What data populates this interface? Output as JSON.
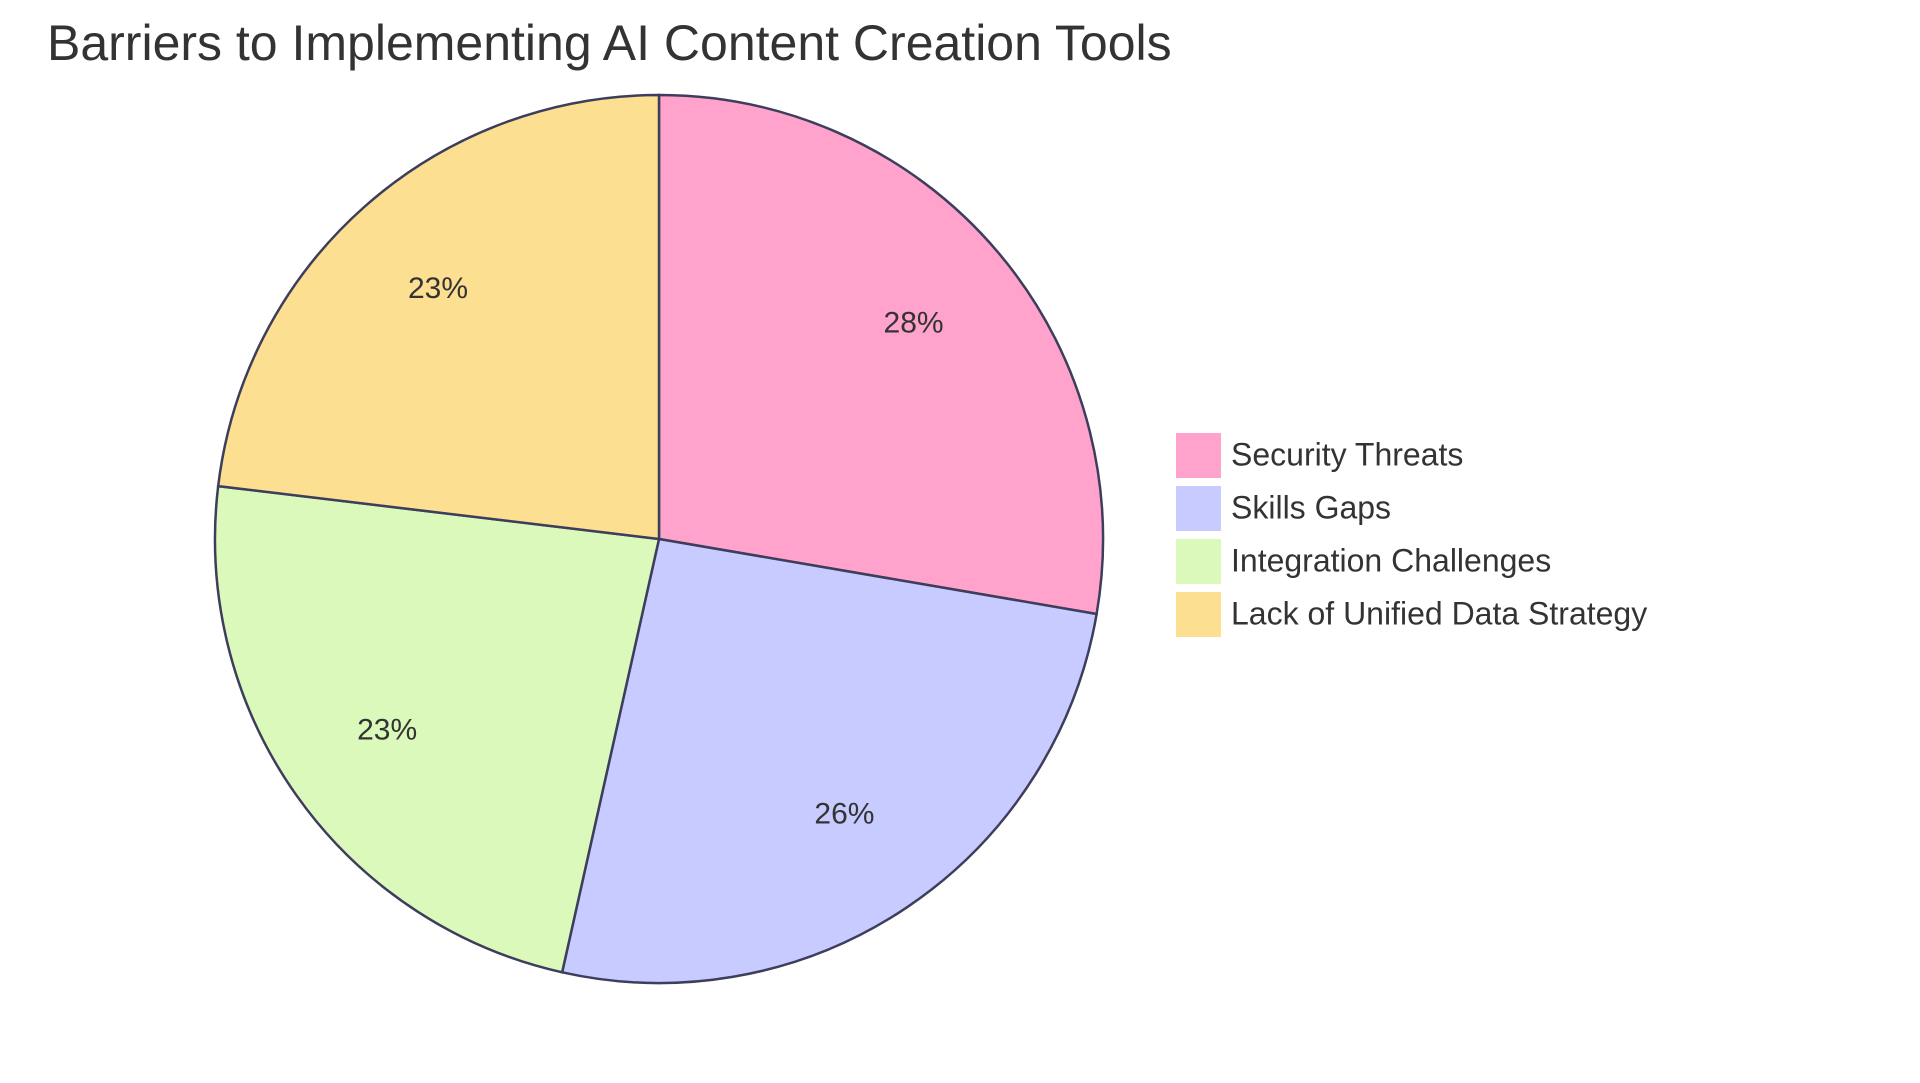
{
  "chart_data": {
    "type": "pie",
    "title": "Barriers to Implementing AI Content Creation Tools",
    "legend_position": "right",
    "slices": [
      {
        "name": "Security Threats",
        "value": 27.7,
        "label": "28%",
        "color": "#FFA3CD"
      },
      {
        "name": "Skills Gaps",
        "value": 25.8,
        "label": "26%",
        "color": "#C8CBFF"
      },
      {
        "name": "Integration Challenges",
        "value": 23.4,
        "label": "23%",
        "color": "#DBF9BA"
      },
      {
        "name": "Lack of Unified Data Strategy",
        "value": 23.1,
        "label": "23%",
        "color": "#FDDF92"
      }
    ],
    "stroke_color": "#3D3D5C"
  }
}
